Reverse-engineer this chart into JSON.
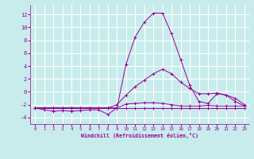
{
  "xlabel": "Windchill (Refroidissement éolien,°C)",
  "ylabel": "",
  "background_color": "#c8ecec",
  "grid_color": "#ffffff",
  "line_color": "#990099",
  "x_values": [
    0,
    1,
    2,
    3,
    4,
    5,
    6,
    7,
    8,
    9,
    10,
    11,
    12,
    13,
    14,
    15,
    16,
    17,
    18,
    19,
    20,
    21,
    22,
    23
  ],
  "xlim": [
    -0.5,
    23.5
  ],
  "ylim": [
    -5.0,
    13.5
  ],
  "yticks": [
    -4,
    -2,
    0,
    2,
    4,
    6,
    8,
    10,
    12
  ],
  "xticks": [
    0,
    1,
    2,
    3,
    4,
    5,
    6,
    7,
    8,
    9,
    10,
    11,
    12,
    13,
    14,
    15,
    16,
    17,
    18,
    19,
    20,
    21,
    22,
    23
  ],
  "series": {
    "line1": [
      -2.5,
      -2.5,
      -2.5,
      -2.5,
      -2.5,
      -2.5,
      -2.5,
      -2.5,
      -2.5,
      -2.5,
      -2.5,
      -2.5,
      -2.5,
      -2.5,
      -2.5,
      -2.5,
      -2.5,
      -2.5,
      -2.5,
      -2.5,
      -2.5,
      -2.5,
      -2.5,
      -2.5
    ],
    "line2": [
      -2.5,
      -2.8,
      -3.0,
      -2.9,
      -3.0,
      -2.9,
      -2.8,
      -2.8,
      -3.5,
      -2.5,
      -1.9,
      -1.8,
      -1.7,
      -1.7,
      -1.8,
      -2.0,
      -2.2,
      -2.2,
      -2.2,
      -2.1,
      -2.2,
      -2.2,
      -2.2,
      -2.2
    ],
    "line3": [
      -2.5,
      -2.5,
      -2.5,
      -2.5,
      -2.5,
      -2.5,
      -2.5,
      -2.5,
      -2.5,
      -2.0,
      -0.5,
      0.8,
      1.8,
      2.8,
      3.5,
      2.8,
      1.5,
      0.5,
      -0.3,
      -0.3,
      -0.2,
      -0.5,
      -1.0,
      -2.0
    ],
    "line4": [
      -2.5,
      -2.5,
      -2.5,
      -2.5,
      -2.5,
      -2.5,
      -2.5,
      -2.5,
      -2.5,
      -2.5,
      4.3,
      8.5,
      10.8,
      12.2,
      12.2,
      9.0,
      5.0,
      1.0,
      -1.5,
      -1.8,
      -0.3,
      -0.5,
      -1.5,
      -2.2
    ]
  }
}
